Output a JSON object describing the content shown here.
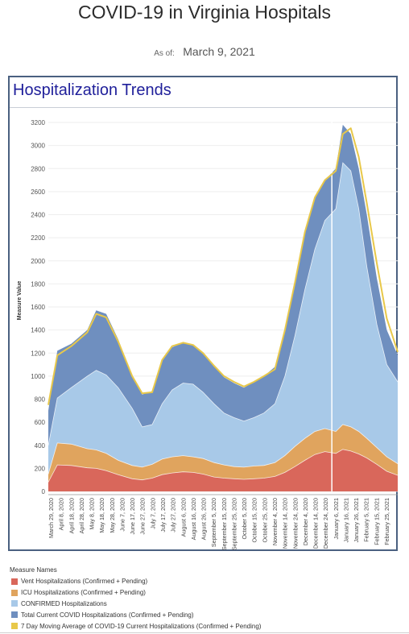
{
  "header": {
    "title": "COVID-19 in Virginia Hospitals",
    "as_of_label": "As of:",
    "as_of_date": "March 9, 2021"
  },
  "panel": {
    "title": "Hospitalization Trends"
  },
  "legend": {
    "title": "Measure Names",
    "items": [
      {
        "label": "Vent Hospitalizations (Confirmed + Pending)",
        "color": "#d9675b"
      },
      {
        "label": "ICU Hospitalizations (Confirmed + Pending)",
        "color": "#e0a45e"
      },
      {
        "label": "CONFIRMED Hospitalizations",
        "color": "#a8c9e8"
      },
      {
        "label": "Total Current COVID Hospitalizations (Confirmed + Pending)",
        "color": "#6f8fbf"
      },
      {
        "label": "7 Day Moving Average of COVID-19 Current Hospitalizations (Confirmed + Pending)",
        "color": "#e8c84a"
      }
    ]
  },
  "chart_data": {
    "type": "area",
    "ylabel": "Measure Value",
    "xlabel": "",
    "ylim": [
      0,
      3200
    ],
    "yticks": [
      0,
      200,
      400,
      600,
      800,
      1000,
      1200,
      1400,
      1600,
      1800,
      2000,
      2200,
      2400,
      2600,
      2800,
      3000,
      3200
    ],
    "x_tick_labels": [
      "March 29, 2020",
      "April 8, 2020",
      "April 18, 2020",
      "April 28, 2020",
      "May 8, 2020",
      "May 18, 2020",
      "May 28, 2020",
      "June 7, 2020",
      "June 17, 2020",
      "June 27, 2020",
      "July 7, 2020",
      "July 17, 2020",
      "July 27, 2020",
      "August 6, 2020",
      "August 16, 2020",
      "August 26, 2020",
      "September 5, 2020",
      "September 15, 2020",
      "September 25, 2020",
      "October 5, 2020",
      "October 15, 2020",
      "October 25, 2020",
      "November 4, 2020",
      "November 14, 2020",
      "November 24, 2020",
      "December 4, 2020",
      "December 14, 2020",
      "December 24, 2020",
      "January 6, 2021",
      "January 16, 2021",
      "January 26, 2021",
      "February 5, 2021",
      "February 15, 2021",
      "February 25, 2021"
    ],
    "x": [
      "2020-03-23",
      "2020-04-01",
      "2020-04-15",
      "2020-05-01",
      "2020-05-10",
      "2020-05-20",
      "2020-06-01",
      "2020-06-15",
      "2020-06-25",
      "2020-07-05",
      "2020-07-15",
      "2020-07-25",
      "2020-08-05",
      "2020-08-15",
      "2020-08-25",
      "2020-09-05",
      "2020-09-15",
      "2020-09-25",
      "2020-10-05",
      "2020-10-15",
      "2020-10-25",
      "2020-11-05",
      "2020-11-15",
      "2020-11-25",
      "2020-12-05",
      "2020-12-15",
      "2020-12-25",
      "2021-01-05",
      "2021-01-12",
      "2021-01-20",
      "2021-01-28",
      "2021-02-05",
      "2021-02-15",
      "2021-02-25",
      "2021-03-08"
    ],
    "series": [
      {
        "name": "Vent Hospitalizations (Confirmed + Pending)",
        "values": [
          80,
          230,
          225,
          205,
          200,
          180,
          145,
          110,
          100,
          115,
          145,
          160,
          170,
          165,
          150,
          125,
          115,
          110,
          105,
          110,
          115,
          130,
          165,
          215,
          270,
          320,
          345,
          330,
          365,
          350,
          325,
          290,
          235,
          175,
          140
        ]
      },
      {
        "name": "ICU Hospitalizations (Confirmed + Pending)",
        "values": [
          150,
          420,
          410,
          370,
          360,
          330,
          270,
          225,
          210,
          235,
          280,
          300,
          310,
          300,
          285,
          250,
          230,
          215,
          210,
          220,
          225,
          250,
          310,
          390,
          460,
          520,
          545,
          520,
          580,
          560,
          520,
          460,
          380,
          300,
          240
        ]
      },
      {
        "name": "CONFIRMED Hospitalizations",
        "values": [
          400,
          810,
          900,
          1000,
          1050,
          1010,
          900,
          720,
          560,
          580,
          760,
          880,
          940,
          930,
          860,
          760,
          680,
          640,
          610,
          640,
          680,
          760,
          1000,
          1350,
          1750,
          2100,
          2350,
          2450,
          2850,
          2780,
          2450,
          1950,
          1450,
          1100,
          950
        ]
      },
      {
        "name": "Total Current COVID Hospitalizations (Confirmed + Pending)",
        "values": [
          700,
          1220,
          1280,
          1400,
          1570,
          1540,
          1320,
          1000,
          840,
          870,
          1150,
          1250,
          1290,
          1270,
          1200,
          1090,
          990,
          940,
          900,
          950,
          1000,
          1080,
          1400,
          1800,
          2250,
          2550,
          2700,
          2800,
          3180,
          3100,
          2800,
          2400,
          1850,
          1400,
          1180
        ]
      },
      {
        "name": "7 Day Moving Average of COVID-19 Current Hospitalizations (Confirmed + Pending)",
        "values": [
          750,
          1180,
          1260,
          1380,
          1540,
          1510,
          1300,
          1000,
          850,
          860,
          1140,
          1260,
          1290,
          1270,
          1200,
          1090,
          1000,
          950,
          910,
          950,
          1000,
          1060,
          1400,
          1810,
          2250,
          2550,
          2700,
          2780,
          3100,
          3150,
          2900,
          2500,
          1980,
          1500,
          1210
        ]
      }
    ],
    "reference_line_date": "2021-01-01",
    "grid": true,
    "legend_position": "bottom-left"
  }
}
